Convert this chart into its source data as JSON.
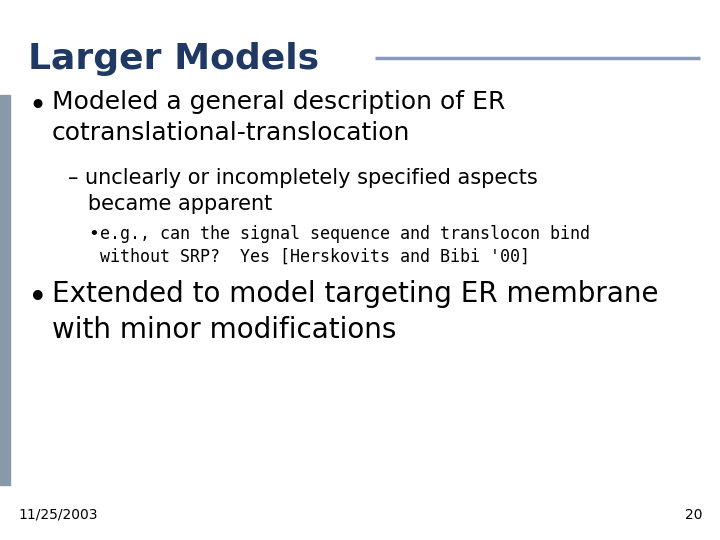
{
  "title": "Larger Models",
  "title_color": "#1F3864",
  "title_fontsize": 26,
  "bg_color": "#FFFFFF",
  "left_bar_color": "#8899AA",
  "header_line_color": "#8899BB",
  "bullet1_text": "Modeled a general description of ER\ncotranslational-translocation",
  "bullet1_fontsize": 18,
  "sub_bullet_text": "– unclearly or incompletely specified aspects\n   became apparent",
  "sub_bullet_fontsize": 15,
  "sub_sub_bullet_text": "e.g., can the signal sequence and translocon bind\nwithout SRP?  Yes [Herskovits and Bibi '00]",
  "sub_sub_bullet_fontsize": 12,
  "sub_sub_bullet_font": "monospace",
  "bullet2_text": "Extended to model targeting ER membrane\nwith minor modifications",
  "bullet2_fontsize": 20,
  "footer_date": "11/25/2003",
  "footer_page": "20",
  "footer_fontsize": 10,
  "text_color": "#000000",
  "bullet_color": "#000000"
}
